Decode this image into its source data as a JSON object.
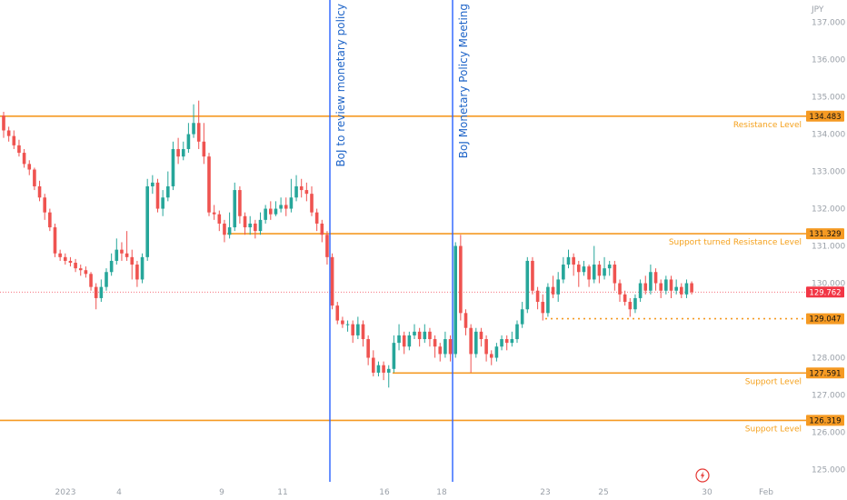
{
  "chart_data": {
    "type": "candlestick",
    "currency": "JPY",
    "ylim": [
      124.5,
      137.6
    ],
    "y_ticks": [
      "137.000",
      "136.000",
      "135.000",
      "134.000",
      "133.000",
      "132.000",
      "131.000",
      "130.000",
      "128.000",
      "127.000",
      "126.000",
      "125.000"
    ],
    "y_tick_values": [
      137,
      136,
      135,
      134,
      133,
      132,
      131,
      130,
      128,
      127,
      126,
      125
    ],
    "x_ticks": [
      {
        "label": "2023",
        "pos": 72
      },
      {
        "label": "4",
        "pos": 131
      },
      {
        "label": "9",
        "pos": 244
      },
      {
        "label": "11",
        "pos": 311
      },
      {
        "label": "16",
        "pos": 423
      },
      {
        "label": "18",
        "pos": 486
      },
      {
        "label": "23",
        "pos": 600
      },
      {
        "label": "25",
        "pos": 664
      },
      {
        "label": "30",
        "pos": 778
      },
      {
        "label": "Feb",
        "pos": 843
      }
    ],
    "levels": [
      {
        "name": "Resistance Level",
        "value": 134.483,
        "label": "134.483",
        "style": "solid",
        "x0": 0
      },
      {
        "name": "Support turned Resistance Level",
        "value": 131.329,
        "label": "131.329",
        "style": "solid",
        "x0": 250
      },
      {
        "name": "",
        "value": 129.047,
        "label": "129.047",
        "style": "dotted",
        "x0": 600
      },
      {
        "name": "Support Level",
        "value": 127.591,
        "label": "127.591",
        "style": "solid",
        "x0": 432
      },
      {
        "name": "Support Level",
        "value": 126.319,
        "label": "126.319",
        "style": "solid",
        "x0": 0
      }
    ],
    "current_price": {
      "value": 129.762,
      "label": "129.762"
    },
    "events": [
      {
        "label": "BoJ to review monetary policy",
        "pos": 363
      },
      {
        "label": "BoJ Monetary Policy Meeting",
        "pos": 498
      }
    ],
    "candles": [
      [
        134.5,
        134.1,
        134.6,
        133.9
      ],
      [
        134.1,
        133.95,
        134.2,
        133.8
      ],
      [
        133.95,
        133.7,
        134.1,
        133.6
      ],
      [
        133.7,
        133.5,
        133.85,
        133.4
      ],
      [
        133.5,
        133.2,
        133.6,
        133.1
      ],
      [
        133.2,
        133.05,
        133.3,
        132.9
      ],
      [
        133.05,
        132.6,
        133.1,
        132.5
      ],
      [
        132.6,
        132.3,
        132.75,
        132.2
      ],
      [
        132.3,
        131.9,
        132.4,
        131.7
      ],
      [
        131.9,
        131.5,
        132.0,
        131.4
      ],
      [
        131.5,
        130.8,
        131.6,
        130.7
      ],
      [
        130.8,
        130.7,
        130.9,
        130.6
      ],
      [
        130.7,
        130.6,
        130.8,
        130.5
      ],
      [
        130.6,
        130.55,
        130.7,
        130.45
      ],
      [
        130.55,
        130.4,
        130.65,
        130.3
      ],
      [
        130.4,
        130.35,
        130.5,
        130.2
      ],
      [
        130.35,
        130.25,
        130.45,
        130.15
      ],
      [
        130.25,
        129.9,
        130.3,
        129.8
      ],
      [
        129.9,
        129.6,
        130.0,
        129.3
      ],
      [
        129.6,
        129.9,
        130.1,
        129.5
      ],
      [
        129.9,
        130.3,
        130.4,
        129.8
      ],
      [
        130.3,
        130.6,
        130.8,
        130.2
      ],
      [
        130.6,
        130.9,
        131.2,
        130.5
      ],
      [
        130.9,
        130.8,
        131.1,
        130.6
      ],
      [
        130.8,
        130.7,
        131.4,
        130.6
      ],
      [
        130.7,
        130.5,
        130.9,
        130.1
      ],
      [
        130.5,
        130.1,
        130.6,
        129.9
      ],
      [
        130.1,
        130.7,
        130.8,
        130.0
      ],
      [
        130.7,
        132.6,
        132.8,
        130.6
      ],
      [
        132.6,
        132.7,
        132.9,
        132.4
      ],
      [
        132.7,
        132.0,
        132.8,
        131.9
      ],
      [
        132.0,
        132.3,
        132.5,
        131.8
      ],
      [
        132.3,
        132.6,
        133.0,
        132.2
      ],
      [
        132.6,
        133.6,
        133.8,
        132.5
      ],
      [
        133.6,
        133.4,
        133.9,
        133.2
      ],
      [
        133.4,
        133.6,
        133.8,
        133.3
      ],
      [
        133.6,
        134.0,
        134.3,
        133.5
      ],
      [
        134.0,
        134.3,
        134.8,
        133.9
      ],
      [
        134.3,
        133.8,
        134.9,
        133.6
      ],
      [
        133.8,
        133.4,
        134.3,
        133.2
      ],
      [
        133.4,
        131.9,
        133.5,
        131.8
      ],
      [
        131.9,
        131.85,
        132.1,
        131.7
      ],
      [
        131.85,
        131.6,
        131.95,
        131.4
      ],
      [
        131.6,
        131.3,
        131.7,
        131.1
      ],
      [
        131.3,
        131.5,
        131.9,
        131.2
      ],
      [
        131.5,
        132.5,
        132.7,
        131.4
      ],
      [
        132.5,
        131.8,
        132.6,
        131.6
      ],
      [
        131.8,
        131.5,
        131.9,
        131.3
      ],
      [
        131.5,
        131.6,
        131.8,
        131.3
      ],
      [
        131.6,
        131.4,
        131.7,
        131.2
      ],
      [
        131.4,
        131.7,
        131.9,
        131.3
      ],
      [
        131.7,
        132.0,
        132.1,
        131.6
      ],
      [
        132.0,
        131.85,
        132.2,
        131.7
      ],
      [
        131.85,
        132.0,
        132.2,
        131.8
      ],
      [
        132.0,
        132.1,
        132.3,
        131.9
      ],
      [
        132.1,
        132.0,
        132.3,
        131.8
      ],
      [
        132.0,
        132.3,
        132.8,
        131.9
      ],
      [
        132.3,
        132.6,
        132.9,
        132.2
      ],
      [
        132.6,
        132.5,
        132.8,
        132.3
      ],
      [
        132.5,
        132.4,
        132.7,
        132.2
      ],
      [
        132.4,
        131.9,
        132.6,
        131.8
      ],
      [
        131.9,
        131.6,
        132.0,
        131.4
      ],
      [
        131.6,
        131.3,
        131.7,
        131.1
      ],
      [
        131.3,
        130.7,
        131.4,
        130.5
      ],
      [
        130.7,
        129.4,
        130.8,
        129.3
      ],
      [
        129.4,
        129.0,
        129.5,
        128.9
      ],
      [
        129.0,
        128.9,
        129.1,
        128.8
      ],
      [
        128.9,
        128.9,
        129.0,
        128.7
      ],
      [
        128.9,
        128.6,
        129.0,
        128.4
      ],
      [
        128.6,
        128.9,
        129.1,
        128.5
      ],
      [
        128.9,
        128.5,
        129.0,
        128.3
      ],
      [
        128.5,
        128.0,
        128.6,
        127.8
      ],
      [
        128.0,
        127.6,
        128.2,
        127.5
      ],
      [
        127.6,
        127.8,
        127.9,
        127.5
      ],
      [
        127.8,
        127.6,
        127.9,
        127.4
      ],
      [
        127.6,
        127.7,
        127.8,
        127.2
      ],
      [
        127.7,
        128.4,
        128.6,
        127.6
      ],
      [
        128.4,
        128.6,
        128.9,
        128.2
      ],
      [
        128.6,
        128.3,
        128.7,
        128.1
      ],
      [
        128.3,
        128.6,
        128.7,
        128.2
      ],
      [
        128.6,
        128.7,
        128.9,
        128.5
      ],
      [
        128.7,
        128.5,
        128.8,
        128.3
      ],
      [
        128.5,
        128.7,
        128.9,
        128.4
      ],
      [
        128.7,
        128.5,
        128.8,
        128.3
      ],
      [
        128.5,
        128.3,
        128.6,
        128.0
      ],
      [
        128.3,
        128.1,
        128.4,
        127.9
      ],
      [
        128.1,
        128.5,
        128.7,
        128.0
      ],
      [
        128.5,
        128.1,
        128.6,
        127.9
      ],
      [
        128.1,
        131.0,
        131.1,
        128.0
      ],
      [
        131.0,
        129.2,
        131.3,
        129.0
      ],
      [
        129.2,
        128.8,
        129.3,
        128.6
      ],
      [
        128.8,
        128.1,
        128.9,
        127.6
      ],
      [
        128.1,
        128.7,
        128.8,
        128.0
      ],
      [
        128.7,
        128.5,
        128.8,
        128.3
      ],
      [
        128.5,
        128.1,
        128.6,
        127.9
      ],
      [
        128.1,
        128.0,
        128.2,
        127.8
      ],
      [
        128.0,
        128.3,
        128.4,
        127.9
      ],
      [
        128.3,
        128.5,
        128.6,
        128.2
      ],
      [
        128.5,
        128.4,
        128.6,
        128.2
      ],
      [
        128.4,
        128.5,
        128.7,
        128.3
      ],
      [
        128.5,
        128.9,
        129.0,
        128.4
      ],
      [
        128.9,
        129.3,
        129.5,
        128.8
      ],
      [
        129.3,
        130.6,
        130.7,
        129.2
      ],
      [
        130.6,
        129.8,
        130.7,
        129.7
      ],
      [
        129.8,
        129.5,
        129.9,
        129.3
      ],
      [
        129.5,
        129.2,
        129.7,
        129.0
      ],
      [
        129.2,
        129.9,
        130.0,
        129.1
      ],
      [
        129.9,
        129.7,
        130.2,
        129.6
      ],
      [
        129.7,
        130.1,
        130.3,
        129.5
      ],
      [
        130.1,
        130.5,
        130.7,
        130.0
      ],
      [
        130.5,
        130.7,
        130.9,
        130.4
      ],
      [
        130.7,
        130.5,
        130.8,
        130.2
      ],
      [
        130.5,
        130.3,
        130.6,
        129.9
      ],
      [
        130.3,
        130.45,
        130.6,
        130.2
      ],
      [
        130.45,
        130.1,
        130.5,
        129.9
      ],
      [
        130.1,
        130.5,
        131.0,
        130.0
      ],
      [
        130.5,
        130.2,
        130.6,
        130.0
      ],
      [
        130.2,
        130.4,
        130.7,
        130.1
      ],
      [
        130.4,
        130.5,
        130.6,
        130.2
      ],
      [
        130.5,
        130.0,
        130.6,
        129.8
      ],
      [
        130.0,
        129.7,
        130.1,
        129.5
      ],
      [
        129.7,
        129.5,
        129.8,
        129.4
      ],
      [
        129.5,
        129.3,
        129.6,
        129.1
      ],
      [
        129.3,
        129.6,
        129.7,
        129.2
      ],
      [
        129.6,
        130.0,
        130.1,
        129.5
      ],
      [
        130.0,
        129.8,
        130.2,
        129.7
      ],
      [
        129.8,
        130.3,
        130.5,
        129.7
      ],
      [
        130.3,
        130.0,
        130.4,
        129.8
      ],
      [
        130.0,
        129.8,
        130.1,
        129.6
      ],
      [
        129.8,
        130.1,
        130.2,
        129.7
      ],
      [
        130.1,
        129.8,
        130.2,
        129.6
      ],
      [
        129.8,
        129.9,
        130.1,
        129.7
      ],
      [
        129.9,
        129.7,
        130.0,
        129.6
      ],
      [
        129.7,
        130.0,
        130.1,
        129.6
      ],
      [
        130.0,
        129.76,
        130.05,
        129.7
      ]
    ]
  },
  "colors": {
    "up": "#26a69a",
    "down": "#ef5350",
    "level": "#f59a23",
    "event": "#2962ff",
    "current": "#f23645",
    "grid_text": "#9aa0a8"
  },
  "icons": {
    "bottom_right": "lightning-icon"
  }
}
